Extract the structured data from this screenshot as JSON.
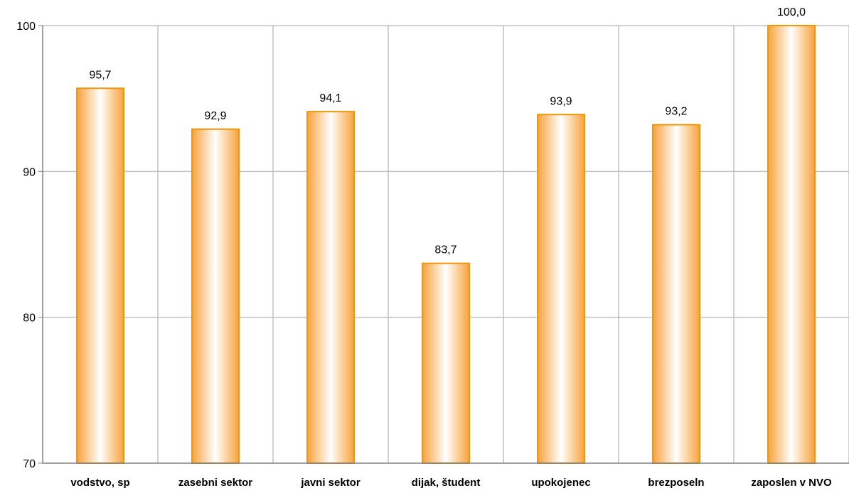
{
  "chart_data": {
    "type": "bar",
    "title": "",
    "xlabel": "",
    "ylabel": "",
    "categories": [
      "vodstvo, sp",
      "zasebni sektor",
      "javni sektor",
      "dijak, študent",
      "upokojenec",
      "brezposeln",
      "zaposlen v NVO"
    ],
    "values": [
      95.7,
      92.9,
      94.1,
      83.7,
      93.9,
      93.2,
      100.0
    ],
    "value_labels": [
      "95,7",
      "92,9",
      "94,1",
      "83,7",
      "93,9",
      "93,2",
      "100,0"
    ],
    "ylim": [
      70,
      100
    ],
    "yticks": [
      70,
      80,
      90,
      100
    ],
    "ytick_labels": [
      "70",
      "80",
      "90",
      "100"
    ],
    "grid": true,
    "legend": "none",
    "colors": {
      "bar_edge": "#F0960A",
      "bar_outer": "#F7A23A",
      "bar_center": "#FFFFFF",
      "grid": "#C0C0C0",
      "axis": "#808080"
    }
  }
}
